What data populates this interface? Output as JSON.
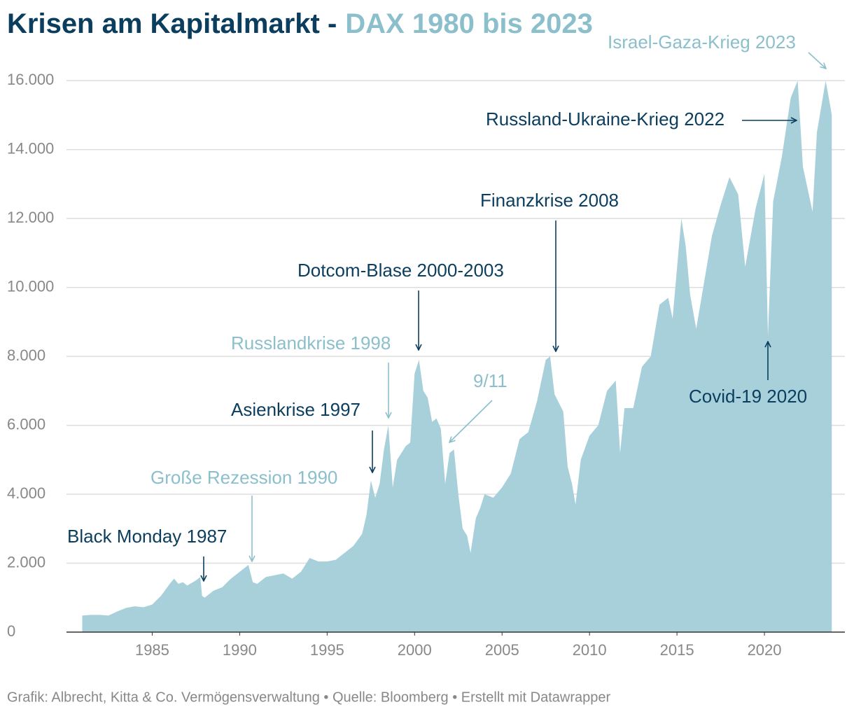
{
  "chart_data": {
    "type": "area",
    "title": [
      "Krisen am Kapitalmarkt -",
      "DAX 1980 bis 2023"
    ],
    "title_colors": [
      "#0b3d5e",
      "#8cbfcc"
    ],
    "source": "Grafik: Albrecht, Kitta & Co. Vermögensverwaltung • Quelle: Bloomberg • Erstellt mit Datawrapper",
    "color": "#a8d0db",
    "x": [
      1981,
      1981.5,
      1982,
      1982.5,
      1983,
      1983.5,
      1984,
      1984.5,
      1985,
      1985.5,
      1986,
      1986.25,
      1986.5,
      1986.75,
      1987,
      1987.5,
      1987.75,
      1987.85,
      1988,
      1988.5,
      1989,
      1989.5,
      1990,
      1990.5,
      1990.75,
      1991,
      1991.5,
      1992,
      1992.5,
      1993,
      1993.5,
      1994,
      1994.5,
      1995,
      1995.5,
      1996,
      1996.5,
      1997,
      1997.25,
      1997.5,
      1997.75,
      1998,
      1998.25,
      1998.5,
      1998.75,
      1999,
      1999.5,
      1999.75,
      2000,
      2000.25,
      2000.5,
      2000.75,
      2001,
      2001.25,
      2001.5,
      2001.75,
      2002,
      2002.25,
      2002.5,
      2002.75,
      2003,
      2003.2,
      2003.5,
      2003.75,
      2004,
      2004.5,
      2005,
      2005.5,
      2006,
      2006.5,
      2007,
      2007.5,
      2007.75,
      2008,
      2008.5,
      2008.75,
      2009,
      2009.2,
      2009.5,
      2010,
      2010.5,
      2011,
      2011.5,
      2011.75,
      2012,
      2012.5,
      2013,
      2013.5,
      2014,
      2014.5,
      2014.75,
      2015.25,
      2015.5,
      2015.75,
      2016.1,
      2016.5,
      2017,
      2017.5,
      2018,
      2018.5,
      2018.9,
      2019.5,
      2020,
      2020.2,
      2020.5,
      2021,
      2021.5,
      2021.9,
      2022.2,
      2022.75,
      2023,
      2023.5,
      2023.75,
      2023.85
    ],
    "values": [
      480,
      500,
      500,
      480,
      600,
      700,
      750,
      720,
      800,
      1050,
      1400,
      1550,
      1400,
      1450,
      1350,
      1500,
      1600,
      1050,
      1000,
      1200,
      1300,
      1550,
      1750,
      1950,
      1450,
      1400,
      1600,
      1650,
      1700,
      1550,
      1750,
      2150,
      2050,
      2050,
      2100,
      2300,
      2500,
      2850,
      3400,
      4400,
      3900,
      4300,
      5300,
      6000,
      4200,
      5000,
      5400,
      5500,
      7500,
      7900,
      7000,
      6800,
      6100,
      6200,
      5900,
      4300,
      5200,
      5300,
      4000,
      3000,
      2800,
      2300,
      3300,
      3600,
      4000,
      3900,
      4200,
      4600,
      5600,
      5800,
      6700,
      7900,
      8000,
      6900,
      6400,
      4800,
      4300,
      3700,
      5000,
      5700,
      6000,
      7000,
      7300,
      5200,
      6500,
      6500,
      7700,
      8000,
      9500,
      9700,
      9100,
      12000,
      11200,
      9800,
      8800,
      10000,
      11500,
      12400,
      13200,
      12700,
      10600,
      12300,
      13300,
      8600,
      12500,
      13800,
      15500,
      16000,
      13500,
      12200,
      14500,
      16000,
      15300,
      15000
    ],
    "xlim": [
      1980.1,
      2024.6
    ],
    "xticks": [
      1985,
      1990,
      1995,
      2000,
      2005,
      2010,
      2015,
      2020
    ],
    "ylim": [
      0,
      17000
    ],
    "yticks": [
      0,
      {
        "value": 2000,
        "label": "2.000"
      },
      {
        "value": 4000,
        "label": "4.000"
      },
      {
        "value": 6000,
        "label": "6.000"
      },
      {
        "value": 8000,
        "label": "8.000"
      },
      {
        "value": 10000,
        "label": "10.000"
      },
      {
        "value": 12000,
        "label": "12.000"
      },
      {
        "value": 14000,
        "label": "14.000"
      },
      {
        "value": 16000,
        "label": "16.000"
      }
    ],
    "grid": true,
    "annotations": [
      {
        "text": "Black Monday 1987",
        "color": "#0b3d5e"
      },
      {
        "text": "Große Rezession 1990",
        "color": "#8cbfcc"
      },
      {
        "text": "Asienkrise 1997",
        "color": "#0b3d5e"
      },
      {
        "text": "Russlandkrise 1998",
        "color": "#8cbfcc"
      },
      {
        "text": "9/11",
        "color": "#8cbfcc"
      },
      {
        "text": "Dotcom-Blase 2000-2003",
        "color": "#0b3d5e"
      },
      {
        "text": "Finanzkrise 2008",
        "color": "#0b3d5e"
      },
      {
        "text": "Covid-19 2020",
        "color": "#0b3d5e"
      },
      {
        "text": "Russland-Ukraine-Krieg 2022",
        "color": "#0b3d5e"
      },
      {
        "text": "Israel-Gaza-Krieg 2023",
        "color": "#8cbfcc"
      }
    ]
  }
}
